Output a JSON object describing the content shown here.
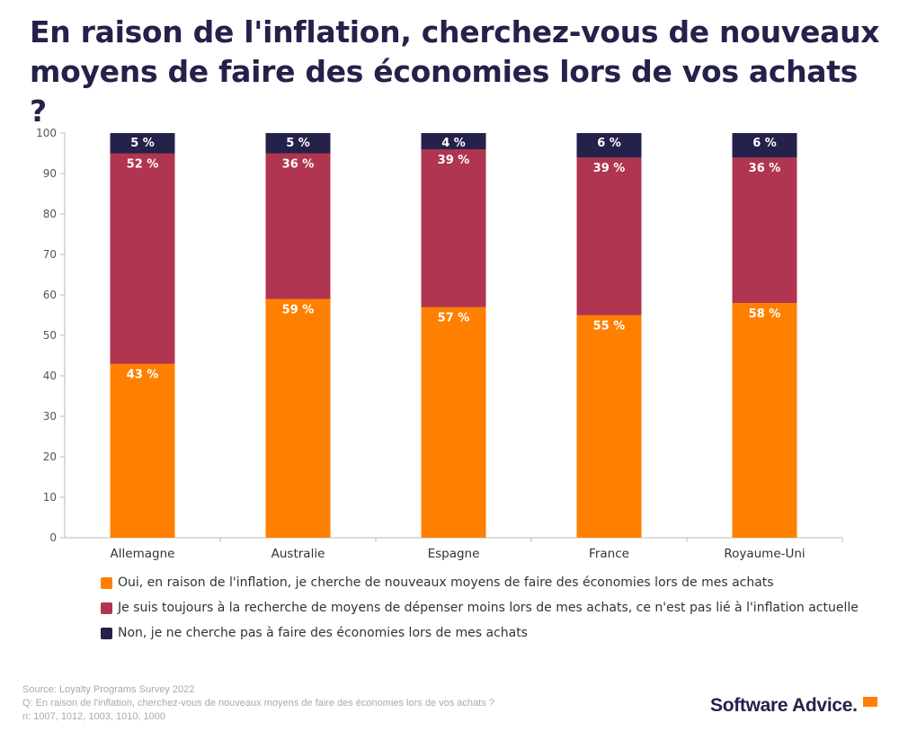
{
  "title": "En raison de l'inflation, cherchez-vous de nouveaux moyens de faire des économies lors de vos achats ?",
  "chart_data": {
    "type": "bar",
    "stacked": true,
    "categories": [
      "Allemagne",
      "Australie",
      "Espagne",
      "France",
      "Royaume-Uni"
    ],
    "series": [
      {
        "name": "Oui, en raison de l'inflation, je cherche de nouveaux moyens de faire des économies lors de mes achats",
        "color": "#ff8000",
        "values": [
          43,
          59,
          57,
          55,
          58
        ]
      },
      {
        "name": "Je suis toujours à la recherche de moyens de dépenser moins lors de mes achats, ce n'est pas lié à l'inflation actuelle",
        "color": "#b03550",
        "values": [
          52,
          36,
          39,
          39,
          36
        ]
      },
      {
        "name": "Non, je ne cherche pas à faire des économies lors de mes achats",
        "color": "#24214a",
        "values": [
          5,
          5,
          4,
          6,
          6
        ]
      }
    ],
    "ylim": [
      0,
      100
    ],
    "yticks": [
      0,
      10,
      20,
      30,
      40,
      50,
      60,
      70,
      80,
      90,
      100
    ],
    "value_suffix": " %",
    "legend_position": "bottom",
    "grid": false
  },
  "footer": {
    "source": "Source: Loyalty Programs Survey 2022",
    "question": "Q: En raison de l'inflation, cherchez-vous de nouveaux moyens de faire des économies lors de vos achats ?",
    "n": "n: 1007, 1012, 1003, 1010, 1000"
  },
  "logo": "Software Advice."
}
